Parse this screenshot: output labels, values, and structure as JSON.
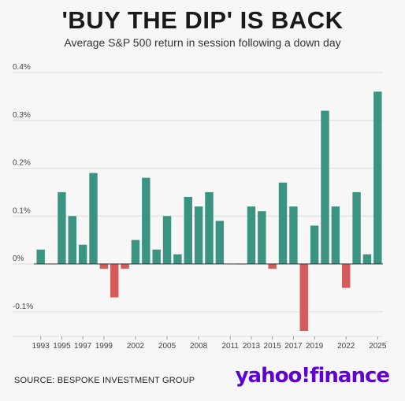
{
  "header": {
    "title": "'BUY THE DIP' IS BACK",
    "subtitle": "Average S&P 500 return in session following a down day"
  },
  "footer": {
    "source": "SOURCE: BESPOKE INVESTMENT GROUP",
    "brand": "yahoo!finance"
  },
  "colors": {
    "positive": "#3a9481",
    "negative": "#d65a5a",
    "grid": "#dddddd",
    "axis": "#333333",
    "brand": "#5f01d1"
  },
  "chart_data": {
    "type": "bar",
    "title": "'BUY THE DIP' IS BACK",
    "subtitle": "Average S&P 500 return in session following a down day",
    "xlabel": "",
    "ylabel": "",
    "ylim": [
      -0.15,
      0.4
    ],
    "grid": true,
    "legend": "none",
    "y_ticks": [
      "0.4%",
      "0.3%",
      "0.2%",
      "0.1%",
      "0%",
      "-0.1%"
    ],
    "y_tick_values": [
      0.4,
      0.3,
      0.2,
      0.1,
      0,
      -0.1
    ],
    "x_tick_labels": [
      "1993",
      "1995",
      "1997",
      "1999",
      "2002",
      "2005",
      "2008",
      "2011",
      "2013",
      "2015",
      "2017",
      "2019",
      "2022",
      "2025"
    ],
    "categories": [
      "1993",
      "1994",
      "1995",
      "1996",
      "1997",
      "1998",
      "1999",
      "2000",
      "2001",
      "2002",
      "2003",
      "2004",
      "2005",
      "2006",
      "2007",
      "2008",
      "2009",
      "2010",
      "2011",
      "2012",
      "2013",
      "2014",
      "2015",
      "2016",
      "2017",
      "2018",
      "2019",
      "2020",
      "2021",
      "2022",
      "2023",
      "2024",
      "2025"
    ],
    "values": [
      0.03,
      0,
      0.15,
      0.1,
      0.04,
      0.19,
      -0.01,
      -0.07,
      -0.01,
      0.05,
      0.18,
      0.03,
      0.1,
      0.02,
      0.14,
      0.12,
      0.15,
      0.09,
      0,
      -0.001,
      0.12,
      0.11,
      -0.01,
      0.17,
      0.12,
      -0.14,
      0.08,
      0.32,
      0.12,
      -0.05,
      0.15,
      0.02,
      0.36
    ]
  }
}
